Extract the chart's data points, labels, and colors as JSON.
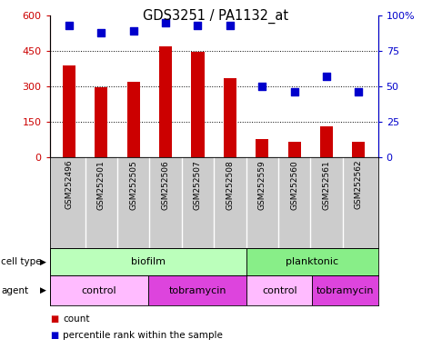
{
  "title": "GDS3251 / PA1132_at",
  "samples": [
    "GSM252496",
    "GSM252501",
    "GSM252505",
    "GSM252506",
    "GSM252507",
    "GSM252508",
    "GSM252559",
    "GSM252560",
    "GSM252561",
    "GSM252562"
  ],
  "counts": [
    390,
    295,
    320,
    470,
    445,
    335,
    75,
    65,
    130,
    65
  ],
  "percentile_ranks": [
    93,
    88,
    89,
    95,
    93,
    93,
    50,
    46,
    57,
    46
  ],
  "ylim_left": [
    0,
    600
  ],
  "ylim_right": [
    0,
    100
  ],
  "yticks_left": [
    0,
    150,
    300,
    450,
    600
  ],
  "yticks_right": [
    0,
    25,
    50,
    75,
    100
  ],
  "bar_color": "#cc0000",
  "dot_color": "#0000cc",
  "cell_type_groups": [
    {
      "label": "biofilm",
      "start": 0,
      "end": 6,
      "color": "#bbffbb"
    },
    {
      "label": "planktonic",
      "start": 6,
      "end": 10,
      "color": "#88ee88"
    }
  ],
  "agent_groups": [
    {
      "label": "control",
      "start": 0,
      "end": 3,
      "color": "#ffbbff"
    },
    {
      "label": "tobramycin",
      "start": 3,
      "end": 6,
      "color": "#dd44dd"
    },
    {
      "label": "control",
      "start": 6,
      "end": 8,
      "color": "#ffbbff"
    },
    {
      "label": "tobramycin",
      "start": 8,
      "end": 10,
      "color": "#dd44dd"
    }
  ],
  "left_axis_color": "#cc0000",
  "right_axis_color": "#0000cc",
  "sample_bg_color": "#cccccc",
  "legend_count_color": "#cc0000",
  "legend_dot_color": "#0000cc"
}
